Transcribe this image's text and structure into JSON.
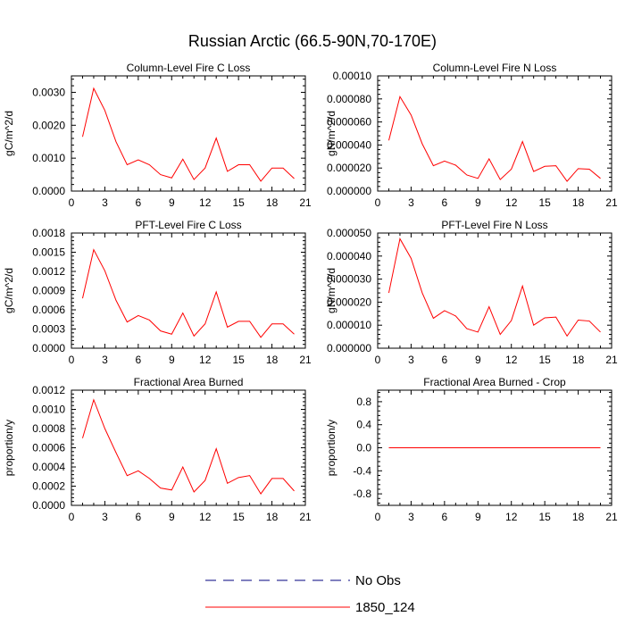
{
  "figure_title": "Russian Arctic (66.5-90N,70-170E)",
  "colors": {
    "model": "#ff0000",
    "obs": "#00007f",
    "axis": "#000000"
  },
  "legend": {
    "obs_label": "No Obs",
    "model_label": "1850_124"
  },
  "chart_data": [
    {
      "type": "line",
      "title": "Column-Level Fire C Loss",
      "xlabel": "",
      "ylabel": "gC/m^2/d",
      "xlim": [
        0,
        21
      ],
      "ylim": [
        0,
        0.0035
      ],
      "xticks": [
        0,
        3,
        6,
        9,
        12,
        15,
        18,
        21
      ],
      "xtick_labels": [
        "0",
        "3",
        "6",
        "9",
        "12",
        "15",
        "18",
        "21"
      ],
      "yticks": [
        0,
        0.001,
        0.002,
        0.003
      ],
      "ytick_labels": [
        "0.0000",
        "0.0010",
        "0.0020",
        "0.0030"
      ],
      "yaxis_side": "left",
      "series": [
        {
          "name": "1850_124",
          "x": [
            1,
            2,
            3,
            4,
            5,
            6,
            7,
            8,
            9,
            10,
            11,
            12,
            13,
            14,
            15,
            16,
            17,
            18,
            19,
            20
          ],
          "values": [
            0.00165,
            0.00312,
            0.00245,
            0.0015,
            0.0008,
            0.00095,
            0.0008,
            0.0005,
            0.0004,
            0.00097,
            0.00035,
            0.0007,
            0.00161,
            0.0006,
            0.0008,
            0.0008,
            0.0003,
            0.0007,
            0.0007,
            0.00038
          ]
        }
      ]
    },
    {
      "type": "line",
      "title": "Column-Level Fire N Loss",
      "xlabel": "",
      "ylabel": "gN/m^2/d",
      "xlim": [
        0,
        21
      ],
      "ylim": [
        0,
        0.0001
      ],
      "xticks": [
        0,
        3,
        6,
        9,
        12,
        15,
        18,
        21
      ],
      "xtick_labels": [
        "0",
        "3",
        "6",
        "9",
        "12",
        "15",
        "18",
        "21"
      ],
      "yticks": [
        0,
        2e-05,
        4e-05,
        6e-05,
        8e-05,
        0.0001
      ],
      "ytick_labels": [
        "0.000000",
        "0.000020",
        "0.000040",
        "0.000060",
        "0.000080",
        "0.00010"
      ],
      "yaxis_side": "left",
      "series": [
        {
          "name": "1850_124",
          "x": [
            1,
            2,
            3,
            4,
            5,
            6,
            7,
            8,
            9,
            10,
            11,
            12,
            13,
            14,
            15,
            16,
            17,
            18,
            19,
            20
          ],
          "values": [
            4.4e-05,
            8.2e-05,
            6.6e-05,
            4.1e-05,
            2.2e-05,
            2.6e-05,
            2.25e-05,
            1.4e-05,
            1.1e-05,
            2.8e-05,
            1e-05,
            1.9e-05,
            4.3e-05,
            1.7e-05,
            2.15e-05,
            2.2e-05,
            8.5e-06,
            1.95e-05,
            1.9e-05,
            1.1e-05
          ]
        }
      ]
    },
    {
      "type": "line",
      "title": "PFT-Level Fire C Loss",
      "xlabel": "",
      "ylabel": "gC/m^2/d",
      "xlim": [
        0,
        21
      ],
      "ylim": [
        0,
        0.0018
      ],
      "xticks": [
        0,
        3,
        6,
        9,
        12,
        15,
        18,
        21
      ],
      "xtick_labels": [
        "0",
        "3",
        "6",
        "9",
        "12",
        "15",
        "18",
        "21"
      ],
      "yticks": [
        0,
        0.0003,
        0.0006,
        0.0009,
        0.0012,
        0.0015,
        0.0018
      ],
      "ytick_labels": [
        "0.0000",
        "0.0003",
        "0.0006",
        "0.0009",
        "0.0012",
        "0.0015",
        "0.0018"
      ],
      "yaxis_side": "left",
      "series": [
        {
          "name": "1850_124",
          "x": [
            1,
            2,
            3,
            4,
            5,
            6,
            7,
            8,
            9,
            10,
            11,
            12,
            13,
            14,
            15,
            16,
            17,
            18,
            19,
            20
          ],
          "values": [
            0.00078,
            0.00154,
            0.00121,
            0.00075,
            0.00041,
            0.00051,
            0.00044,
            0.00027,
            0.00022,
            0.00055,
            0.00019,
            0.00038,
            0.00088,
            0.00033,
            0.00042,
            0.00042,
            0.00017,
            0.00038,
            0.00038,
            0.00022
          ]
        }
      ]
    },
    {
      "type": "line",
      "title": "PFT-Level Fire N Loss",
      "xlabel": "",
      "ylabel": "gN/m^2/d",
      "xlim": [
        0,
        21
      ],
      "ylim": [
        0,
        5e-05
      ],
      "xticks": [
        0,
        3,
        6,
        9,
        12,
        15,
        18,
        21
      ],
      "xtick_labels": [
        "0",
        "3",
        "6",
        "9",
        "12",
        "15",
        "18",
        "21"
      ],
      "yticks": [
        0,
        1e-05,
        2e-05,
        3e-05,
        4e-05,
        5e-05
      ],
      "ytick_labels": [
        "0.000000",
        "0.000010",
        "0.000020",
        "0.000030",
        "0.000040",
        "0.000050"
      ],
      "yaxis_side": "left",
      "series": [
        {
          "name": "1850_124",
          "x": [
            1,
            2,
            3,
            4,
            5,
            6,
            7,
            8,
            9,
            10,
            11,
            12,
            13,
            14,
            15,
            16,
            17,
            18,
            19,
            20
          ],
          "values": [
            2.4e-05,
            4.75e-05,
            3.9e-05,
            2.4e-05,
            1.3e-05,
            1.63e-05,
            1.4e-05,
            8.5e-06,
            7e-06,
            1.8e-05,
            6e-06,
            1.2e-05,
            2.7e-05,
            1e-05,
            1.32e-05,
            1.35e-05,
            5.3e-06,
            1.22e-05,
            1.18e-05,
            7e-06
          ]
        }
      ]
    },
    {
      "type": "line",
      "title": "Fractional Area Burned",
      "xlabel": "",
      "ylabel": "proportion/y",
      "xlim": [
        0,
        21
      ],
      "ylim": [
        0,
        0.0012
      ],
      "xticks": [
        0,
        3,
        6,
        9,
        12,
        15,
        18,
        21
      ],
      "xtick_labels": [
        "0",
        "3",
        "6",
        "9",
        "12",
        "15",
        "18",
        "21"
      ],
      "yticks": [
        0,
        0.0002,
        0.0004,
        0.0006,
        0.0008,
        0.001,
        0.0012
      ],
      "ytick_labels": [
        "0.0000",
        "0.0002",
        "0.0004",
        "0.0006",
        "0.0008",
        "0.0010",
        "0.0012"
      ],
      "yaxis_side": "left",
      "series": [
        {
          "name": "1850_124",
          "x": [
            1,
            2,
            3,
            4,
            5,
            6,
            7,
            8,
            9,
            10,
            11,
            12,
            13,
            14,
            15,
            16,
            17,
            18,
            19,
            20
          ],
          "values": [
            0.0007,
            0.0011,
            0.0008,
            0.00055,
            0.00031,
            0.00036,
            0.00028,
            0.00018,
            0.00016,
            0.0004,
            0.00014,
            0.00026,
            0.00059,
            0.00023,
            0.00029,
            0.00031,
            0.00012,
            0.00028,
            0.00028,
            0.00015
          ]
        }
      ]
    },
    {
      "type": "line",
      "title": "Fractional Area Burned - Crop",
      "xlabel": "",
      "ylabel": "proportion/y",
      "xlim": [
        0,
        21
      ],
      "ylim": [
        -1,
        1
      ],
      "xticks": [
        0,
        3,
        6,
        9,
        12,
        15,
        18,
        21
      ],
      "xtick_labels": [
        "0",
        "3",
        "6",
        "9",
        "12",
        "15",
        "18",
        "21"
      ],
      "yticks": [
        -0.8,
        -0.4,
        0,
        0.4,
        0.8
      ],
      "ytick_labels": [
        "-0.8",
        "-0.4",
        "0.0",
        "0.4",
        "0.8"
      ],
      "yaxis_side": "left",
      "series": [
        {
          "name": "1850_124",
          "x": [
            1,
            2,
            3,
            4,
            5,
            6,
            7,
            8,
            9,
            10,
            11,
            12,
            13,
            14,
            15,
            16,
            17,
            18,
            19,
            20
          ],
          "values": [
            0,
            0,
            0,
            0,
            0,
            0,
            0,
            0,
            0,
            0,
            0,
            0,
            0,
            0,
            0,
            0,
            0,
            0,
            0,
            0
          ]
        }
      ]
    }
  ]
}
